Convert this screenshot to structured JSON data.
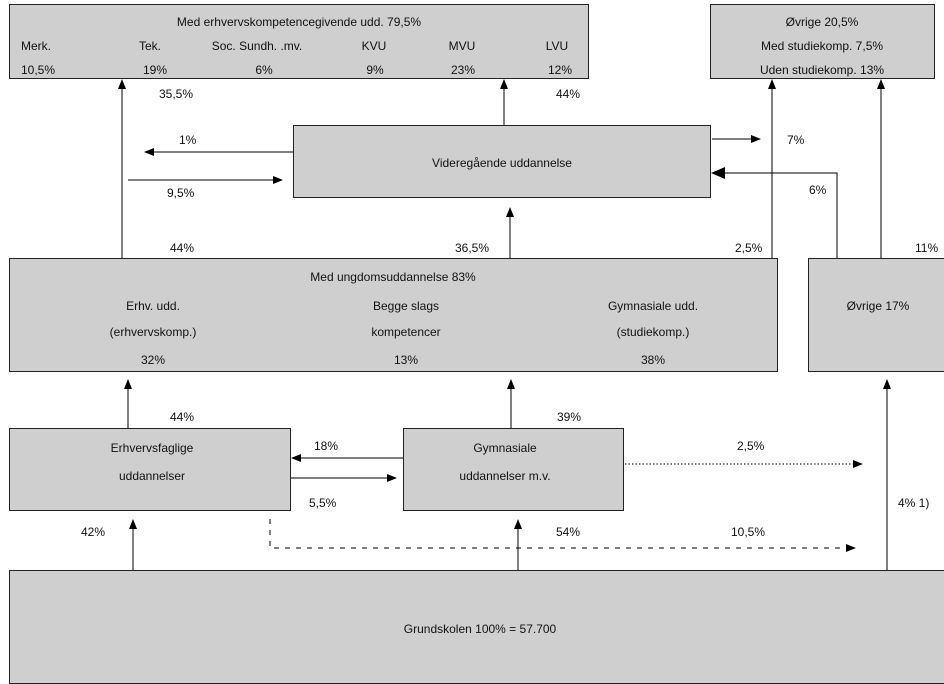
{
  "top_left": {
    "title": "Med erhvervskompetencegivende udd. 79,5%",
    "columns": [
      {
        "label": "Merk.",
        "value": "10,5%"
      },
      {
        "label": "Tek.",
        "value": "19%"
      },
      {
        "label": "Soc. Sundh. .mv.",
        "value": "6%"
      },
      {
        "label": "KVU",
        "value": "9%"
      },
      {
        "label": "MVU",
        "value": "23%"
      },
      {
        "label": "LVU",
        "value": "12%"
      }
    ]
  },
  "top_right": {
    "line1": "Øvrige 20,5%",
    "line2": "Med studiekomp. 7,5%",
    "line3": "Uden studiekomp. 13%"
  },
  "videregaaende": {
    "label": "Videregående uddannelse"
  },
  "ungdom": {
    "title": "Med ungdomsuddannelse 83%",
    "col1": {
      "line1": "Erhv. udd.",
      "line2": "(erhvervskomp.)",
      "value": "32%"
    },
    "col2": {
      "line1": "Begge slags",
      "line2": "kompetencer",
      "value": "13%"
    },
    "col3": {
      "line1": "Gymnasiale udd.",
      "line2": "(studiekomp.)",
      "value": "38%"
    }
  },
  "oevrige": {
    "label": "Øvrige 17%"
  },
  "erhvervsfaglige": {
    "line1": "Erhvervsfaglige",
    "line2": "uddannelser"
  },
  "gymnasiale": {
    "line1": "Gymnasiale",
    "line2": "uddannelser m.v."
  },
  "grundskolen": {
    "label": "Grundskolen 100% = 57.700"
  },
  "flows": {
    "erhv_to_top": "35,5%",
    "vid_to_top": "44%",
    "vid_out_left": "1%",
    "vid_in_left": "9,5%",
    "vid_to_oevrige": "7%",
    "oevrige_to_vid": "6%",
    "ung_to_top_left": "44%",
    "ung_to_vid": "36,5%",
    "ung_to_oevrige_top": "2,5%",
    "oevrige_to_top": "11%",
    "erhv_to_ung": "44%",
    "gym_to_ung": "39%",
    "gym_to_erhv": "18%",
    "erhv_to_gym": "5,5%",
    "gym_dotted": "2,5%",
    "grund_to_erhv": "42%",
    "grund_to_gym": "54%",
    "grund_dashed": "10,5%",
    "grund_to_oevrige": "4% 1)"
  }
}
